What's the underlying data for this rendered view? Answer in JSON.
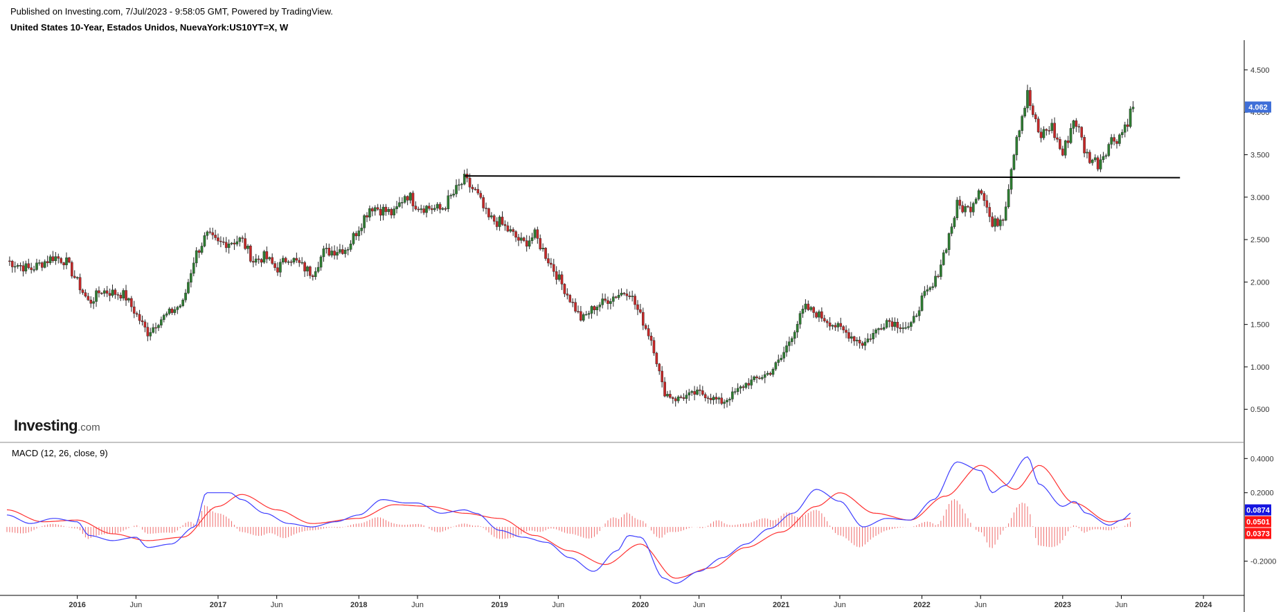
{
  "header": {
    "published": "Published on Investing.com, 7/Jul/2023 - 9:58:05 GMT, Powered by TradingView.",
    "title": "United States 10-Year, Estados Unidos, NuevaYork:US10YT=X, W"
  },
  "logo": {
    "text": "Investing",
    "domain": ".com"
  },
  "colors": {
    "up": "#26a69a",
    "down": "#ef5350",
    "up_candle": "#2e7d32",
    "down_candle": "#c62828",
    "macd_line": "#3d3dff",
    "signal_line": "#ff3030",
    "histogram": "#ef6b6b",
    "price_badge": "#3f6fd8",
    "macd_badge": "#1515e0",
    "signal_badge": "#ff1515"
  },
  "chart_data": [
    {
      "type": "candlestick",
      "interval": "W",
      "y_axis": {
        "range": [
          0.2,
          4.85
        ],
        "ticks": [
          "4.500",
          "4.000",
          "3.500",
          "3.000",
          "2.500",
          "2.000",
          "1.500",
          "1.000",
          "0.500"
        ]
      },
      "x_axis": {
        "range_months": [
          "2015-07",
          "2024-03"
        ],
        "ticks": [
          {
            "label": "2016",
            "date": "2016-01"
          },
          {
            "label": "Jun",
            "date": "2016-06"
          },
          {
            "label": "2017",
            "date": "2017-01"
          },
          {
            "label": "Jun",
            "date": "2017-06"
          },
          {
            "label": "2018",
            "date": "2018-01"
          },
          {
            "label": "Jun",
            "date": "2018-06"
          },
          {
            "label": "2019",
            "date": "2019-01"
          },
          {
            "label": "Jun",
            "date": "2019-06"
          },
          {
            "label": "2020",
            "date": "2020-01"
          },
          {
            "label": "Jun",
            "date": "2020-06"
          },
          {
            "label": "2021",
            "date": "2021-01"
          },
          {
            "label": "Jun",
            "date": "2021-06"
          },
          {
            "label": "2022",
            "date": "2022-01"
          },
          {
            "label": "Jun",
            "date": "2022-06"
          },
          {
            "label": "2023",
            "date": "2023-01"
          },
          {
            "label": "Jun",
            "date": "2023-06"
          },
          {
            "label": "2024",
            "date": "2024-01"
          }
        ]
      },
      "close_path": [
        [
          "2015-07",
          2.25
        ],
        [
          "2015-09",
          2.15
        ],
        [
          "2015-11",
          2.3
        ],
        [
          "2015-12",
          2.25
        ],
        [
          "2016-02",
          1.75
        ],
        [
          "2016-03",
          1.9
        ],
        [
          "2016-05",
          1.85
        ],
        [
          "2016-07",
          1.4
        ],
        [
          "2016-08",
          1.55
        ],
        [
          "2016-10",
          1.75
        ],
        [
          "2016-11",
          2.3
        ],
        [
          "2016-12",
          2.55
        ],
        [
          "2017-01",
          2.45
        ],
        [
          "2017-03",
          2.5
        ],
        [
          "2017-04",
          2.25
        ],
        [
          "2017-05",
          2.3
        ],
        [
          "2017-06",
          2.15
        ],
        [
          "2017-07",
          2.3
        ],
        [
          "2017-09",
          2.1
        ],
        [
          "2017-10",
          2.35
        ],
        [
          "2017-12",
          2.4
        ],
        [
          "2018-01",
          2.65
        ],
        [
          "2018-02",
          2.9
        ],
        [
          "2018-04",
          2.8
        ],
        [
          "2018-05",
          3.05
        ],
        [
          "2018-06",
          2.9
        ],
        [
          "2018-08",
          2.85
        ],
        [
          "2018-10",
          3.2
        ],
        [
          "2018-11",
          3.05
        ],
        [
          "2018-12",
          2.75
        ],
        [
          "2019-01",
          2.7
        ],
        [
          "2019-03",
          2.45
        ],
        [
          "2019-04",
          2.55
        ],
        [
          "2019-06",
          2.05
        ],
        [
          "2019-08",
          1.55
        ],
        [
          "2019-09",
          1.7
        ],
        [
          "2019-11",
          1.85
        ],
        [
          "2019-12",
          1.9
        ],
        [
          "2020-01",
          1.6
        ],
        [
          "2020-02",
          1.3
        ],
        [
          "2020-03",
          0.7
        ],
        [
          "2020-04",
          0.62
        ],
        [
          "2020-06",
          0.7
        ],
        [
          "2020-08",
          0.58
        ],
        [
          "2020-10",
          0.8
        ],
        [
          "2020-12",
          0.93
        ],
        [
          "2021-01",
          1.1
        ],
        [
          "2021-03",
          1.7
        ],
        [
          "2021-04",
          1.63
        ],
        [
          "2021-06",
          1.45
        ],
        [
          "2021-08",
          1.27
        ],
        [
          "2021-10",
          1.55
        ],
        [
          "2021-12",
          1.45
        ],
        [
          "2022-01",
          1.8
        ],
        [
          "2022-02",
          1.95
        ],
        [
          "2022-03",
          2.4
        ],
        [
          "2022-04",
          2.9
        ],
        [
          "2022-05",
          2.85
        ],
        [
          "2022-06",
          3.15
        ],
        [
          "2022-07",
          2.65
        ],
        [
          "2022-08",
          2.8
        ],
        [
          "2022-09",
          3.7
        ],
        [
          "2022-10",
          4.2
        ],
        [
          "2022-11",
          3.7
        ],
        [
          "2022-12",
          3.85
        ],
        [
          "2023-01",
          3.5
        ],
        [
          "2023-02",
          3.95
        ],
        [
          "2023-03",
          3.5
        ],
        [
          "2023-04",
          3.4
        ],
        [
          "2023-05",
          3.65
        ],
        [
          "2023-06",
          3.75
        ],
        [
          "2023-07",
          4.06
        ]
      ],
      "annotations": [
        {
          "type": "horizontal-line",
          "from": "2018-10",
          "to": "2023-11",
          "y_start": 3.25,
          "y_end": 3.23
        }
      ],
      "last_price": "4.062"
    },
    {
      "type": "line",
      "title": "MACD (12, 26, close, 9)",
      "y_axis": {
        "range": [
          -0.38,
          0.47
        ],
        "ticks": [
          "0.4000",
          "0.2000",
          "-0.2000"
        ]
      },
      "series": [
        {
          "role": "macd",
          "points": [
            [
              "2015-07",
              0.07
            ],
            [
              "2015-09",
              0.02
            ],
            [
              "2015-11",
              0.05
            ],
            [
              "2016-01",
              0.03
            ],
            [
              "2016-02",
              -0.05
            ],
            [
              "2016-04",
              -0.08
            ],
            [
              "2016-06",
              -0.06
            ],
            [
              "2016-07",
              -0.12
            ],
            [
              "2016-09",
              -0.1
            ],
            [
              "2016-11",
              0.0
            ],
            [
              "2016-12",
              0.2
            ],
            [
              "2017-02",
              0.2
            ],
            [
              "2017-03",
              0.16
            ],
            [
              "2017-05",
              0.08
            ],
            [
              "2017-07",
              0.02
            ],
            [
              "2017-09",
              0.0
            ],
            [
              "2017-11",
              0.03
            ],
            [
              "2018-01",
              0.07
            ],
            [
              "2018-03",
              0.16
            ],
            [
              "2018-05",
              0.14
            ],
            [
              "2018-06",
              0.14
            ],
            [
              "2018-08",
              0.08
            ],
            [
              "2018-10",
              0.1
            ],
            [
              "2018-11",
              0.08
            ],
            [
              "2019-01",
              -0.02
            ],
            [
              "2019-03",
              -0.06
            ],
            [
              "2019-05",
              -0.09
            ],
            [
              "2019-07",
              -0.18
            ],
            [
              "2019-09",
              -0.26
            ],
            [
              "2019-11",
              -0.14
            ],
            [
              "2019-12",
              -0.05
            ],
            [
              "2020-01",
              -0.06
            ],
            [
              "2020-03",
              -0.3
            ],
            [
              "2020-04",
              -0.33
            ],
            [
              "2020-06",
              -0.26
            ],
            [
              "2020-08",
              -0.18
            ],
            [
              "2020-10",
              -0.1
            ],
            [
              "2020-12",
              -0.01
            ],
            [
              "2021-02",
              0.08
            ],
            [
              "2021-04",
              0.22
            ],
            [
              "2021-06",
              0.15
            ],
            [
              "2021-08",
              0.0
            ],
            [
              "2021-10",
              0.05
            ],
            [
              "2021-12",
              0.04
            ],
            [
              "2022-02",
              0.16
            ],
            [
              "2022-04",
              0.38
            ],
            [
              "2022-06",
              0.33
            ],
            [
              "2022-07",
              0.2
            ],
            [
              "2022-08",
              0.24
            ],
            [
              "2022-10",
              0.41
            ],
            [
              "2022-11",
              0.25
            ],
            [
              "2023-01",
              0.12
            ],
            [
              "2023-02",
              0.15
            ],
            [
              "2023-03",
              0.08
            ],
            [
              "2023-05",
              0.01
            ],
            [
              "2023-06",
              0.04
            ],
            [
              "2023-07",
              0.0874
            ]
          ]
        },
        {
          "role": "signal",
          "points": [
            [
              "2015-07",
              0.1
            ],
            [
              "2015-10",
              0.03
            ],
            [
              "2016-01",
              0.04
            ],
            [
              "2016-04",
              -0.04
            ],
            [
              "2016-07",
              -0.08
            ],
            [
              "2016-10",
              -0.06
            ],
            [
              "2017-01",
              0.12
            ],
            [
              "2017-03",
              0.19
            ],
            [
              "2017-06",
              0.1
            ],
            [
              "2017-09",
              0.02
            ],
            [
              "2018-01",
              0.05
            ],
            [
              "2018-04",
              0.13
            ],
            [
              "2018-07",
              0.12
            ],
            [
              "2018-10",
              0.08
            ],
            [
              "2019-01",
              0.05
            ],
            [
              "2019-04",
              -0.05
            ],
            [
              "2019-07",
              -0.14
            ],
            [
              "2019-10",
              -0.22
            ],
            [
              "2020-01",
              -0.1
            ],
            [
              "2020-04",
              -0.3
            ],
            [
              "2020-07",
              -0.24
            ],
            [
              "2020-10",
              -0.12
            ],
            [
              "2021-01",
              -0.03
            ],
            [
              "2021-04",
              0.12
            ],
            [
              "2021-06",
              0.2
            ],
            [
              "2021-09",
              0.08
            ],
            [
              "2021-12",
              0.04
            ],
            [
              "2022-03",
              0.18
            ],
            [
              "2022-06",
              0.36
            ],
            [
              "2022-09",
              0.22
            ],
            [
              "2022-11",
              0.36
            ],
            [
              "2023-02",
              0.14
            ],
            [
              "2023-05",
              0.03
            ],
            [
              "2023-07",
              0.0501
            ]
          ]
        }
      ],
      "histogram_value": "0.0373",
      "last_values": {
        "macd": "0.0874",
        "signal": "0.0501",
        "histogram": "0.0373"
      }
    }
  ]
}
